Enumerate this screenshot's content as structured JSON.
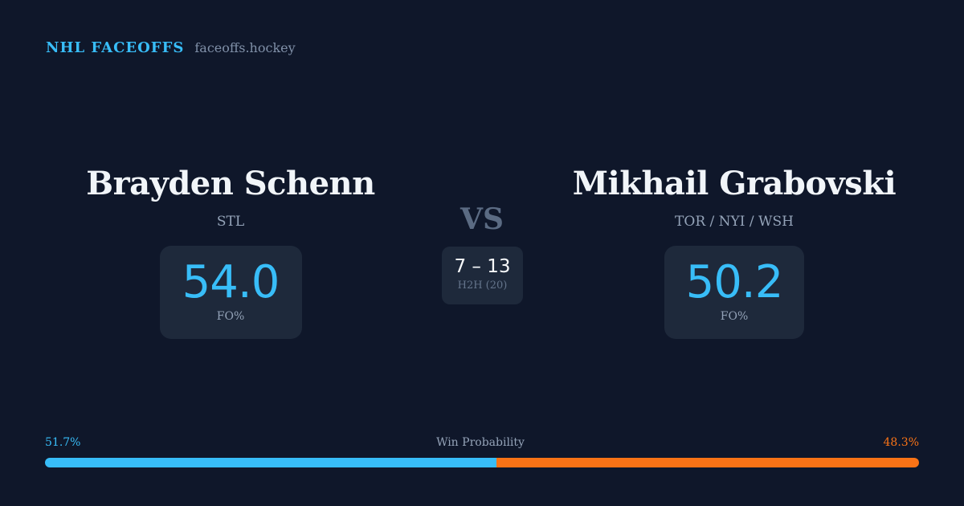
{
  "brand": {
    "title": "NHL FACEOFFS",
    "url": "faceoffs.hockey"
  },
  "left": {
    "name": "Brayden Schenn",
    "team": "STL",
    "fo": "54.0",
    "fo_label": "FO%"
  },
  "right": {
    "name": "Mikhail Grabovski",
    "team": "TOR / NYI / WSH",
    "fo": "50.2",
    "fo_label": "FO%"
  },
  "vs": "VS",
  "h2h": {
    "score": "7 – 13",
    "label": "H2H (20)"
  },
  "win_probability": {
    "label": "Win Probability",
    "left": "51.7%",
    "right": "48.3%",
    "left_value": 51.7,
    "right_value": 48.3,
    "left_color": "#38bdf8",
    "right_color": "#f97316"
  }
}
